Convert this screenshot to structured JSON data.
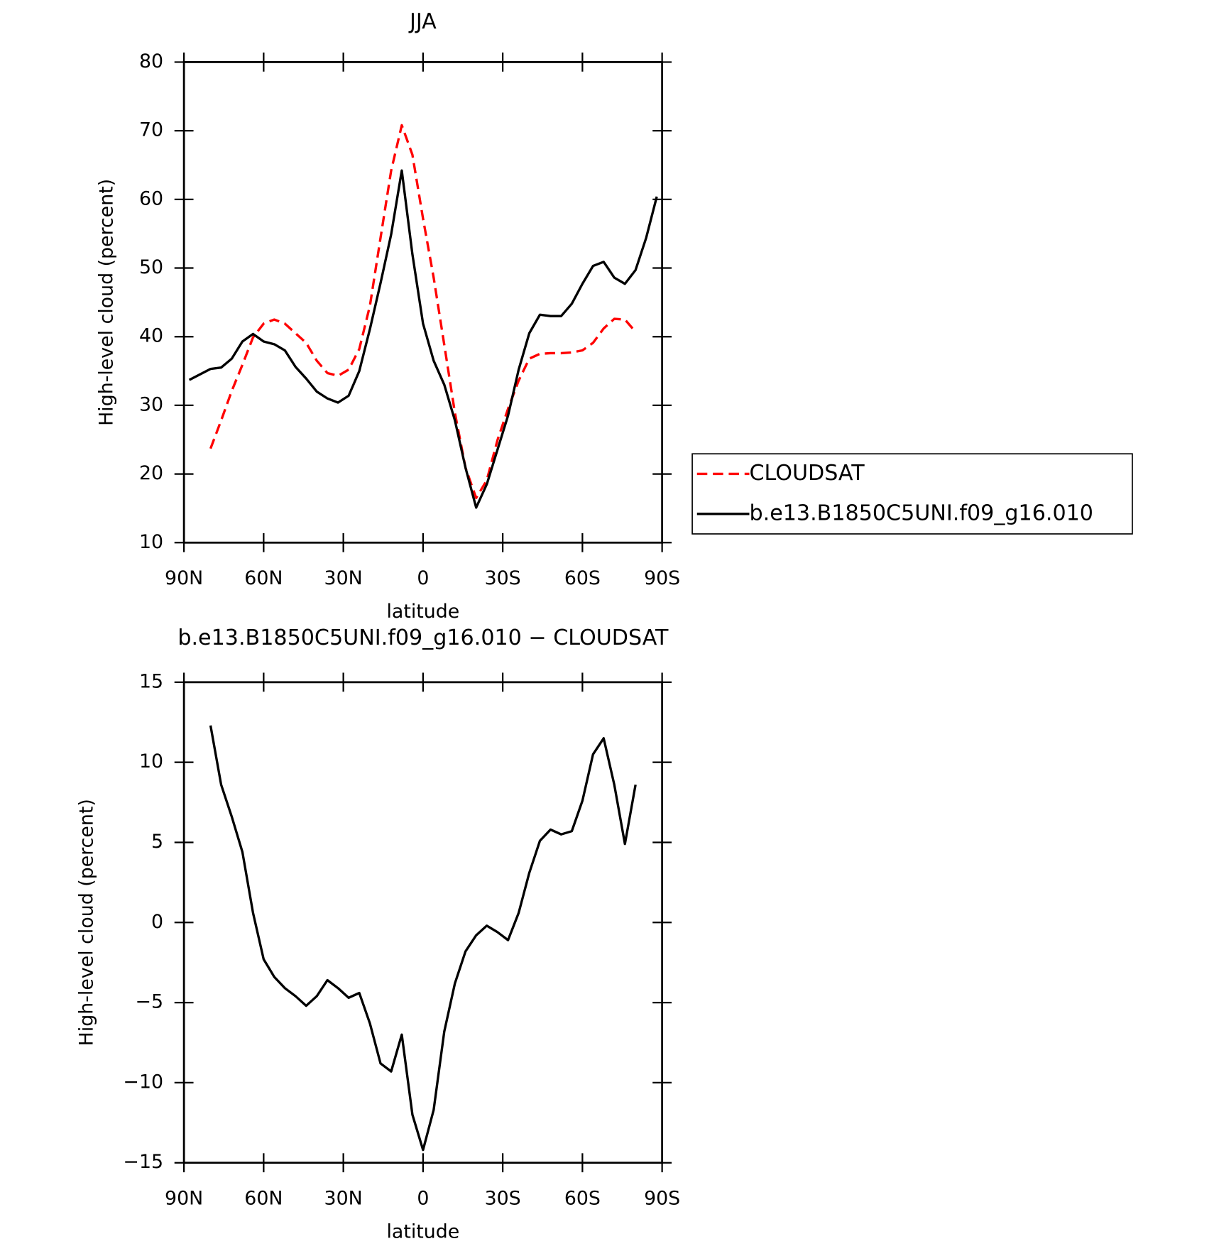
{
  "chart_data": [
    {
      "type": "line",
      "title": "JJA",
      "xlabel": "latitude",
      "ylabel": "High-level cloud (percent)",
      "x": [
        88,
        84,
        80,
        76,
        72,
        68,
        64,
        60,
        56,
        52,
        48,
        44,
        40,
        36,
        32,
        28,
        24,
        20,
        16,
        12,
        8,
        4,
        0,
        -4,
        -8,
        -12,
        -16,
        -20,
        -24,
        -28,
        -32,
        -36,
        -40,
        -44,
        -48,
        -52,
        -56,
        -60,
        -64,
        -68,
        -72,
        -76,
        -80,
        -84,
        -88
      ],
      "series": [
        {
          "name": "CLOUDSAT",
          "color": "#ff0000",
          "style": "dashed",
          "values": [
            null,
            null,
            23.7,
            27.8,
            32.1,
            35.9,
            39.9,
            41.9,
            42.5,
            41.9,
            40.5,
            39.1,
            36.5,
            34.7,
            34.3,
            35.2,
            38.2,
            44.5,
            54.4,
            64.2,
            70.8,
            66.5,
            57.2,
            48.6,
            38.8,
            28.9,
            20.9,
            16.5,
            19.1,
            24.9,
            29.5,
            33.6,
            36.8,
            37.5,
            37.6,
            37.6,
            37.7,
            38.0,
            39.1,
            41.2,
            42.6,
            42.5,
            40.7,
            null,
            null
          ]
        },
        {
          "name": "b.e13.B1850C5UNI.f09_g16.010",
          "color": "#000000",
          "style": "solid",
          "values": [
            33.7,
            34.5,
            35.3,
            35.5,
            36.8,
            39.3,
            40.4,
            39.3,
            38.9,
            38.0,
            35.6,
            33.9,
            32.0,
            31.0,
            30.4,
            31.4,
            35.0,
            41.1,
            47.8,
            54.9,
            64.2,
            52.0,
            41.9,
            36.5,
            33.0,
            27.8,
            20.9,
            15.1,
            18.5,
            23.5,
            28.5,
            35.2,
            40.5,
            43.2,
            43.0,
            43.0,
            44.8,
            47.7,
            50.3,
            50.9,
            48.6,
            47.7,
            49.7,
            54.4,
            60.4
          ]
        }
      ],
      "xlim": [
        90,
        -90
      ],
      "xticks": [
        {
          "value": 90,
          "label": "90N"
        },
        {
          "value": 60,
          "label": "60N"
        },
        {
          "value": 30,
          "label": "30N"
        },
        0,
        {
          "value": -30,
          "label": "30S"
        },
        {
          "value": -60,
          "label": "60S"
        },
        {
          "value": -90,
          "label": "90S"
        }
      ],
      "ylim": [
        10,
        80
      ],
      "yticks": [
        10,
        20,
        30,
        40,
        50,
        60,
        70,
        80
      ],
      "grid": false,
      "legend": "right"
    },
    {
      "type": "line",
      "title": "b.e13.B1850C5UNI.f09_g16.010 − CLOUDSAT",
      "xlabel": "latitude",
      "ylabel": "High-level cloud (percent)",
      "x": [
        80,
        76,
        72,
        68,
        64,
        60,
        56,
        52,
        48,
        44,
        40,
        36,
        32,
        28,
        24,
        20,
        16,
        12,
        8,
        4,
        0,
        -4,
        -8,
        -12,
        -16,
        -20,
        -24,
        -28,
        -32,
        -36,
        -40,
        -44,
        -48,
        -52,
        -56,
        -60,
        -64,
        -68,
        -72,
        -76,
        -80
      ],
      "color": "#000000",
      "values": [
        12.3,
        8.6,
        6.6,
        4.4,
        0.6,
        -2.3,
        -3.4,
        -4.1,
        -4.6,
        -5.2,
        -4.6,
        -3.6,
        -4.1,
        -4.7,
        -4.4,
        -6.3,
        -8.8,
        -9.3,
        -7.0,
        -12.0,
        -14.2,
        -11.7,
        -6.8,
        -3.8,
        -1.8,
        -0.8,
        -0.2,
        -0.6,
        -1.1,
        0.6,
        3.1,
        5.1,
        5.8,
        5.5,
        5.7,
        7.6,
        10.5,
        11.5,
        8.6,
        4.9,
        8.6
      ],
      "xlim": [
        90,
        -90
      ],
      "xticks": [
        {
          "value": 90,
          "label": "90N"
        },
        {
          "value": 60,
          "label": "60N"
        },
        {
          "value": 30,
          "label": "30N"
        },
        0,
        {
          "value": -30,
          "label": "30S"
        },
        {
          "value": -60,
          "label": "60S"
        },
        {
          "value": -90,
          "label": "90S"
        }
      ],
      "ylim": [
        -15,
        15
      ],
      "yticks": [
        {
          "value": -15,
          "label": "−15"
        },
        {
          "value": -10,
          "label": "−10"
        },
        {
          "value": -5,
          "label": "−5"
        },
        0,
        5,
        10,
        15
      ],
      "grid": false
    }
  ]
}
